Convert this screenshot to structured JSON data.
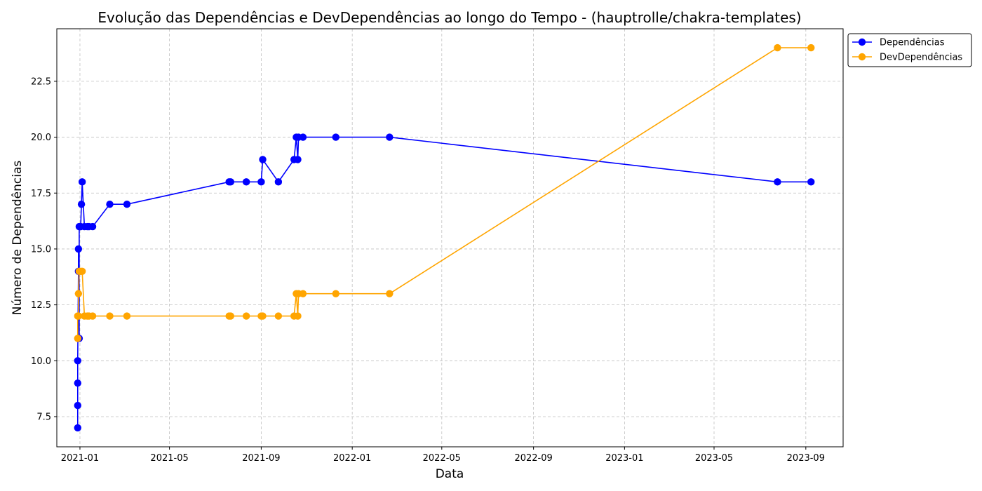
{
  "chart_data": {
    "type": "line",
    "title": "Evolução das Dependências e DevDependências ao longo do Tempo - (hauptrolle/chakra-templates)",
    "xlabel": "Data",
    "ylabel": "Número de Dependências",
    "xlim": [
      "2020-12-01",
      "2023-10-21"
    ],
    "ylim": [
      6.15,
      24.85
    ],
    "x_ticks": [
      "2021-01-01",
      "2021-05-01",
      "2021-09-01",
      "2022-01-01",
      "2022-05-01",
      "2022-09-01",
      "2023-01-01",
      "2023-05-01",
      "2023-09-01"
    ],
    "x_tick_labels": [
      "2021-01",
      "2021-05",
      "2021-09",
      "2022-01",
      "2022-05",
      "2022-09",
      "2023-01",
      "2023-05",
      "2023-09"
    ],
    "y_ticks": [
      7.5,
      10.0,
      12.5,
      15.0,
      17.5,
      20.0,
      22.5
    ],
    "y_tick_labels": [
      "7.5",
      "10.0",
      "12.5",
      "15.0",
      "17.5",
      "20.0",
      "22.5"
    ],
    "grid": true,
    "legend_position": "outside-top-right",
    "series": [
      {
        "name": "Dependências",
        "color": "#0000ff",
        "points": [
          [
            "2020-12-29",
            7
          ],
          [
            "2020-12-29",
            8
          ],
          [
            "2020-12-29",
            9
          ],
          [
            "2020-12-29",
            10
          ],
          [
            "2020-12-30",
            14
          ],
          [
            "2020-12-30",
            15
          ],
          [
            "2020-12-31",
            11
          ],
          [
            "2020-12-31",
            16
          ],
          [
            "2021-01-01",
            16
          ],
          [
            "2021-01-02",
            16
          ],
          [
            "2021-01-03",
            17
          ],
          [
            "2021-01-04",
            18
          ],
          [
            "2021-01-07",
            16
          ],
          [
            "2021-01-11",
            16
          ],
          [
            "2021-01-13",
            16
          ],
          [
            "2021-01-18",
            16
          ],
          [
            "2021-02-10",
            17
          ],
          [
            "2021-03-05",
            17
          ],
          [
            "2021-07-20",
            18
          ],
          [
            "2021-07-22",
            18
          ],
          [
            "2021-08-12",
            18
          ],
          [
            "2021-09-01",
            18
          ],
          [
            "2021-09-03",
            19
          ],
          [
            "2021-09-24",
            18
          ],
          [
            "2021-10-15",
            19
          ],
          [
            "2021-10-18",
            20
          ],
          [
            "2021-10-20",
            19
          ],
          [
            "2021-10-21",
            20
          ],
          [
            "2021-10-27",
            20
          ],
          [
            "2021-12-10",
            20
          ],
          [
            "2022-02-20",
            20
          ],
          [
            "2023-07-25",
            18
          ],
          [
            "2023-09-08",
            18
          ]
        ]
      },
      {
        "name": "DevDependências",
        "color": "#ffa500",
        "points": [
          [
            "2020-12-29",
            11
          ],
          [
            "2020-12-29",
            12
          ],
          [
            "2020-12-30",
            12
          ],
          [
            "2020-12-30",
            13
          ],
          [
            "2020-12-31",
            14
          ],
          [
            "2021-01-02",
            14
          ],
          [
            "2021-01-04",
            14
          ],
          [
            "2021-01-07",
            12
          ],
          [
            "2021-01-11",
            12
          ],
          [
            "2021-01-13",
            12
          ],
          [
            "2021-01-18",
            12
          ],
          [
            "2021-02-10",
            12
          ],
          [
            "2021-03-05",
            12
          ],
          [
            "2021-07-20",
            12
          ],
          [
            "2021-07-22",
            12
          ],
          [
            "2021-08-12",
            12
          ],
          [
            "2021-09-01",
            12
          ],
          [
            "2021-09-03",
            12
          ],
          [
            "2021-09-24",
            12
          ],
          [
            "2021-10-15",
            12
          ],
          [
            "2021-10-18",
            13
          ],
          [
            "2021-10-20",
            12
          ],
          [
            "2021-10-21",
            13
          ],
          [
            "2021-10-27",
            13
          ],
          [
            "2021-12-10",
            13
          ],
          [
            "2022-02-20",
            13
          ],
          [
            "2023-07-25",
            24
          ],
          [
            "2023-09-08",
            24
          ]
        ]
      }
    ]
  }
}
